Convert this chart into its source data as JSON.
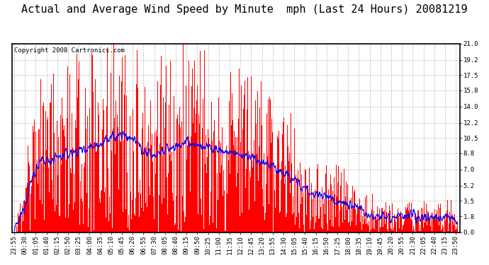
{
  "title": "Actual and Average Wind Speed by Minute  mph (Last 24 Hours) 20081219",
  "copyright": "Copyright 2008 Cartronics.com",
  "yticks": [
    0.0,
    1.8,
    3.5,
    5.2,
    7.0,
    8.8,
    10.5,
    12.2,
    14.0,
    15.8,
    17.5,
    19.2,
    21.0
  ],
  "ylim": [
    0.0,
    21.0
  ],
  "bar_color": "#FF0000",
  "line_color": "#0000FF",
  "bg_color": "#FFFFFF",
  "grid_color": "#BBBBBB",
  "title_fontsize": 11,
  "copyright_fontsize": 6.5,
  "tick_fontsize": 6.5,
  "tick_interval_minutes": 35
}
